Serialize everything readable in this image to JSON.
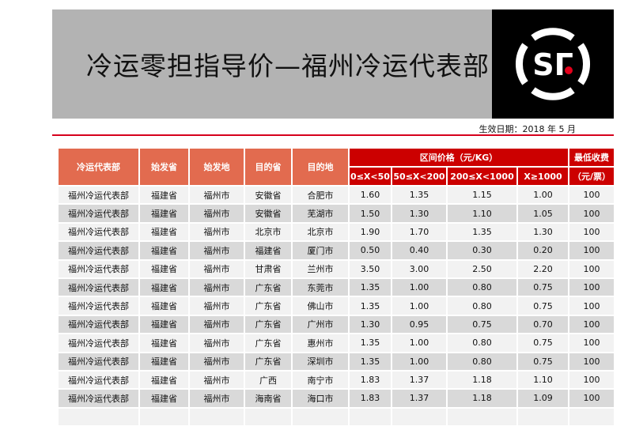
{
  "title": "冷运零担指导价—福州冷运代表部",
  "logo": {
    "text": "SF",
    "colors": {
      "bg": "#000000",
      "ring": "#ffffff",
      "dot": "#e3001b"
    }
  },
  "effective_date": "生效日期：2018 年 5 月",
  "colors": {
    "header_orange": "#e26b4f",
    "header_red": "#cc0000",
    "accent_line": "#d6001c"
  },
  "table": {
    "headers": [
      "冷运代表部",
      "始发省",
      "始发地",
      "目的省",
      "目的地"
    ],
    "price_group": "区间价格（元/KG）",
    "price_ranges": [
      "0≤X<50",
      "50≤X<200",
      "200≤X<1000",
      "X≥1000"
    ],
    "min_fee": [
      "最低收费",
      "（元/票）"
    ],
    "rows": [
      [
        "福州冷运代表部",
        "福建省",
        "福州市",
        "安徽省",
        "合肥市",
        "1.60",
        "1.35",
        "1.15",
        "1.00",
        "100"
      ],
      [
        "福州冷运代表部",
        "福建省",
        "福州市",
        "安徽省",
        "芜湖市",
        "1.50",
        "1.30",
        "1.10",
        "1.05",
        "100"
      ],
      [
        "福州冷运代表部",
        "福建省",
        "福州市",
        "北京市",
        "北京市",
        "1.90",
        "1.70",
        "1.35",
        "1.30",
        "100"
      ],
      [
        "福州冷运代表部",
        "福建省",
        "福州市",
        "福建省",
        "厦门市",
        "0.50",
        "0.40",
        "0.30",
        "0.20",
        "100"
      ],
      [
        "福州冷运代表部",
        "福建省",
        "福州市",
        "甘肃省",
        "兰州市",
        "3.50",
        "3.00",
        "2.50",
        "2.20",
        "100"
      ],
      [
        "福州冷运代表部",
        "福建省",
        "福州市",
        "广东省",
        "东莞市",
        "1.35",
        "1.00",
        "0.80",
        "0.75",
        "100"
      ],
      [
        "福州冷运代表部",
        "福建省",
        "福州市",
        "广东省",
        "佛山市",
        "1.35",
        "1.00",
        "0.80",
        "0.75",
        "100"
      ],
      [
        "福州冷运代表部",
        "福建省",
        "福州市",
        "广东省",
        "广州市",
        "1.30",
        "0.95",
        "0.75",
        "0.70",
        "100"
      ],
      [
        "福州冷运代表部",
        "福建省",
        "福州市",
        "广东省",
        "惠州市",
        "1.35",
        "1.00",
        "0.80",
        "0.75",
        "100"
      ],
      [
        "福州冷运代表部",
        "福建省",
        "福州市",
        "广东省",
        "深圳市",
        "1.35",
        "1.00",
        "0.80",
        "0.75",
        "100"
      ],
      [
        "福州冷运代表部",
        "福建省",
        "福州市",
        "广西",
        "南宁市",
        "1.83",
        "1.37",
        "1.18",
        "1.10",
        "100"
      ],
      [
        "福州冷运代表部",
        "福建省",
        "福州市",
        "海南省",
        "海口市",
        "1.83",
        "1.37",
        "1.18",
        "1.09",
        "100"
      ]
    ]
  }
}
